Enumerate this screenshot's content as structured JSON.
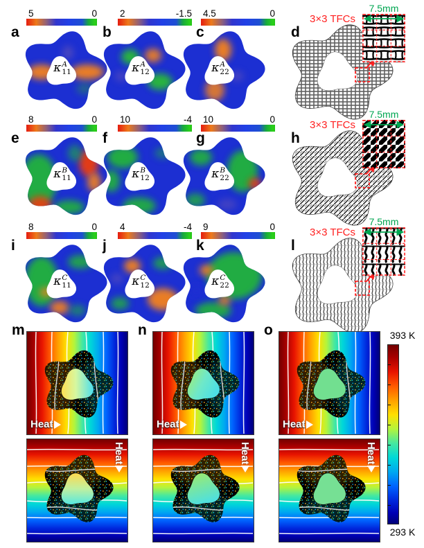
{
  "rows": [
    {
      "name": "A",
      "panels": [
        {
          "letter": "a",
          "cbar_max": "5",
          "cbar_min": "0",
          "kappa": {
            "symbol": "κ",
            "sub": "11",
            "sup": "A"
          }
        },
        {
          "letter": "b",
          "cbar_max": "2",
          "cbar_min": "-1.5",
          "kappa": {
            "symbol": "κ",
            "sub": "12",
            "sup": "A"
          }
        },
        {
          "letter": "c",
          "cbar_max": "4.5",
          "cbar_min": "0",
          "kappa": {
            "symbol": "κ",
            "sub": "22",
            "sup": "A"
          }
        }
      ],
      "mesh": {
        "letter": "d",
        "tfc_label": "3×3 TFCs",
        "scale_label": "7.5mm"
      }
    },
    {
      "name": "B",
      "panels": [
        {
          "letter": "e",
          "cbar_max": "8",
          "cbar_min": "0",
          "kappa": {
            "symbol": "κ",
            "sub": "11",
            "sup": "B"
          }
        },
        {
          "letter": "f",
          "cbar_max": "10",
          "cbar_min": "-4",
          "kappa": {
            "symbol": "κ",
            "sub": "12",
            "sup": "B"
          }
        },
        {
          "letter": "g",
          "cbar_max": "10",
          "cbar_min": "0",
          "kappa": {
            "symbol": "κ",
            "sub": "22",
            "sup": "B"
          }
        }
      ],
      "mesh": {
        "letter": "h",
        "tfc_label": "3×3 TFCs",
        "scale_label": "7.5mm"
      }
    },
    {
      "name": "C",
      "panels": [
        {
          "letter": "i",
          "cbar_max": "8",
          "cbar_min": "0",
          "kappa": {
            "symbol": "κ",
            "sub": "11",
            "sup": "C"
          }
        },
        {
          "letter": "j",
          "cbar_max": "4",
          "cbar_min": "-4",
          "kappa": {
            "symbol": "κ",
            "sub": "12",
            "sup": "C"
          }
        },
        {
          "letter": "k",
          "cbar_max": "9",
          "cbar_min": "0",
          "kappa": {
            "symbol": "κ",
            "sub": "22",
            "sup": "C"
          }
        }
      ],
      "mesh": {
        "letter": "l",
        "tfc_label": "3×3 TFCs",
        "scale_label": "7.5mm"
      }
    }
  ],
  "simulation": {
    "panels_horizontal": [
      {
        "letter": "m",
        "heat_label": "Heat"
      },
      {
        "letter": "n",
        "heat_label": "Heat"
      },
      {
        "letter": "o",
        "heat_label": "Heat"
      }
    ],
    "panels_vertical": [
      {
        "heat_label": "Heat"
      },
      {
        "heat_label": "Heat"
      },
      {
        "heat_label": "Heat"
      }
    ],
    "colorbar": {
      "max_label": "393 K",
      "min_label": "293 K"
    }
  },
  "colors": {
    "annotation_red": "#ff2020",
    "annotation_green": "#00a651",
    "cbar_high_red": "#e41c10",
    "cbar_low_green": "#2bd119",
    "temp_high": "#730000",
    "temp_low": "#000078"
  }
}
